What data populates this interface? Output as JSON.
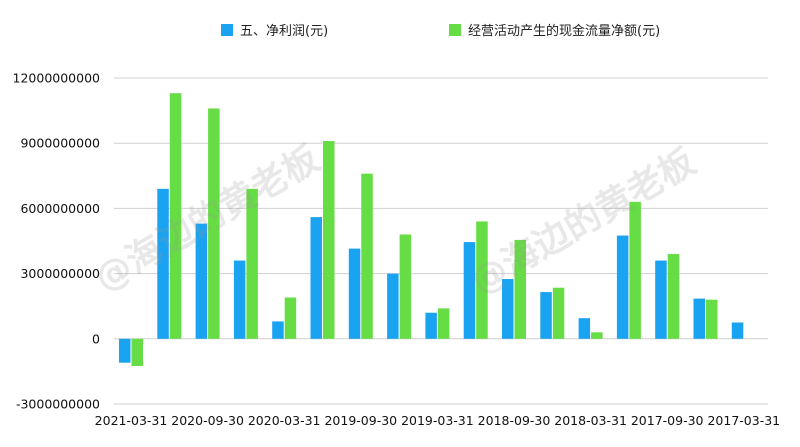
{
  "chart_data": {
    "type": "bar",
    "categories": [
      "2021-03-31",
      "2020-12-31",
      "2020-09-30",
      "2020-06-30",
      "2020-03-31",
      "2019-12-31",
      "2019-09-30",
      "2019-06-30",
      "2019-03-31",
      "2018-12-31",
      "2018-09-30",
      "2018-06-30",
      "2018-03-31",
      "2017-12-31",
      "2017-09-30",
      "2017-06-30",
      "2017-03-31"
    ],
    "visible_tick_labels": [
      "2021-03-31",
      "2020-09-30",
      "2020-03-31",
      "2019-09-30",
      "2019-03-31",
      "2018-09-30",
      "2018-03-31",
      "2017-09-30",
      "2017-03-31"
    ],
    "series": [
      {
        "name": "五、净利润(元)",
        "color": "#1aa3f0",
        "values": [
          -1100000000,
          6900000000,
          5300000000,
          3600000000,
          800000000,
          5600000000,
          4150000000,
          3000000000,
          1200000000,
          4450000000,
          2750000000,
          2150000000,
          950000000,
          4750000000,
          3600000000,
          1850000000,
          750000000
        ]
      },
      {
        "name": "经营活动产生的现金流量净额(元)",
        "color": "#66dd44",
        "values": [
          -1250000000,
          11300000000,
          10600000000,
          6900000000,
          1900000000,
          9100000000,
          7600000000,
          4800000000,
          1400000000,
          5400000000,
          4550000000,
          2350000000,
          300000000,
          6300000000,
          3900000000,
          1800000000,
          null
        ]
      }
    ],
    "y_ticks": [
      -3000000000,
      0,
      3000000000,
      6000000000,
      9000000000,
      12000000000
    ],
    "ylim": [
      -3000000000,
      12000000000
    ],
    "grid": true,
    "legend_position": "top"
  },
  "watermark": {
    "text": "@海边的黄老板"
  }
}
